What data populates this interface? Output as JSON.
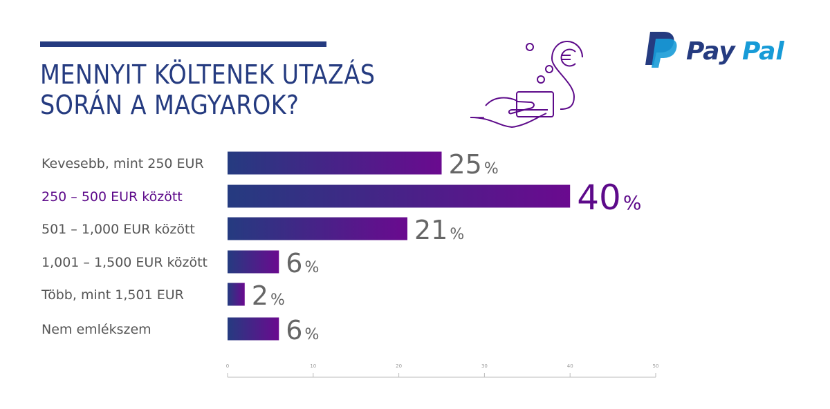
{
  "title": {
    "line1": "MENNYIT KÖLTENEK UTAZÁS",
    "line2": "SORÁN A MAGYAROK?"
  },
  "logo": {
    "text_pay": "Pay",
    "text_pal": "Pal",
    "colors": {
      "dark": "#253b80",
      "light": "#179bd7"
    }
  },
  "illustration": {
    "icon": "hand-card-euro-icon",
    "color": "#5d0a8a"
  },
  "chart_data": {
    "type": "bar",
    "orientation": "horizontal",
    "categories": [
      "Kevesebb, mint 250 EUR",
      "250 – 500 EUR között",
      "501 – 1,000 EUR között",
      "1,001 – 1,500 EUR között",
      "Több, mint 1,501 EUR",
      "Nem emlékszem"
    ],
    "values": [
      25,
      40,
      21,
      6,
      2,
      6
    ],
    "value_suffix": "%",
    "highlighted_index": 1,
    "xlim": [
      0,
      50
    ],
    "xticks": [
      0,
      10,
      20,
      30,
      40,
      50
    ],
    "grid": false,
    "colors": {
      "bar_start": "#253b80",
      "bar_end": "#6a0a8f",
      "highlight": "#5d0a8a",
      "label": "#555555"
    }
  }
}
